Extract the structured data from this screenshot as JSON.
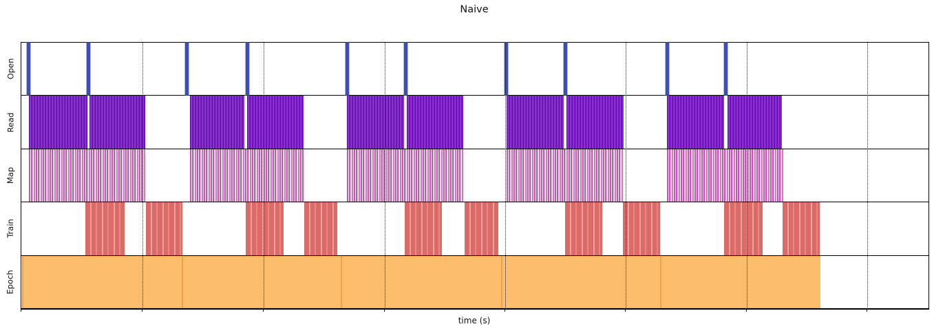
{
  "chart_data": {
    "type": "timeline",
    "title": "Naive",
    "xlabel": "time (s)",
    "x_axis": {
      "tick_labels_shown": false,
      "tick_positions_pct": [
        0,
        13.35,
        26.71,
        40.06,
        53.34,
        66.62,
        79.97,
        93.25
      ],
      "gridline_positions_pct": [
        13.35,
        26.71,
        40.06,
        53.34,
        66.62,
        79.97,
        93.25
      ]
    },
    "legend": "none",
    "grid": "vertical-dotted",
    "colors": {
      "open": "#3e4eb5",
      "read_dark": "#5a0f9c",
      "read_mid": "#8c2fd4",
      "map": "#c455b4",
      "map_light": "#e9b5de",
      "train": "#dc6a66",
      "train_light": "#eda39f",
      "epoch": "#fcbd6d",
      "epoch_edge": "#f0a14c"
    },
    "rows": [
      {
        "label": "Open",
        "style": "open",
        "kind": "events",
        "events_pct": [
          0.76,
          7.36,
          18.21,
          24.89,
          35.89,
          42.34,
          53.49,
          59.94,
          71.17,
          77.69
        ]
      },
      {
        "label": "Read",
        "style": "read",
        "kind": "blocks",
        "blocks_pct": [
          [
            0.84,
            7.28
          ],
          [
            7.51,
            13.66
          ],
          [
            18.59,
            24.58
          ],
          [
            24.89,
            31.11
          ],
          [
            35.89,
            42.19
          ],
          [
            42.49,
            48.71
          ],
          [
            53.49,
            59.79
          ],
          [
            60.09,
            66.39
          ],
          [
            71.17,
            77.47
          ],
          [
            77.85,
            83.84
          ]
        ]
      },
      {
        "label": "Map",
        "style": "map",
        "kind": "blocks",
        "blocks_pct": [
          [
            0.84,
            13.66
          ],
          [
            18.59,
            31.11
          ],
          [
            35.89,
            48.71
          ],
          [
            53.49,
            66.39
          ],
          [
            71.17,
            83.99
          ]
        ]
      },
      {
        "label": "Train",
        "style": "train",
        "kind": "blocks",
        "blocks_pct": [
          [
            7.06,
            11.38
          ],
          [
            13.73,
            17.75
          ],
          [
            24.73,
            28.91
          ],
          [
            31.18,
            34.83
          ],
          [
            42.26,
            46.36
          ],
          [
            48.86,
            52.58
          ],
          [
            59.94,
            64.04
          ],
          [
            66.31,
            70.41
          ],
          [
            77.47,
            81.72
          ],
          [
            83.92,
            88.01
          ]
        ]
      },
      {
        "label": "Epoch",
        "style": "epoch",
        "kind": "blocks",
        "blocks_pct": [
          [
            0.08,
            17.68
          ],
          [
            17.68,
            35.21
          ],
          [
            35.21,
            52.88
          ],
          [
            52.88,
            70.41
          ],
          [
            70.41,
            88.09
          ]
        ]
      }
    ]
  }
}
